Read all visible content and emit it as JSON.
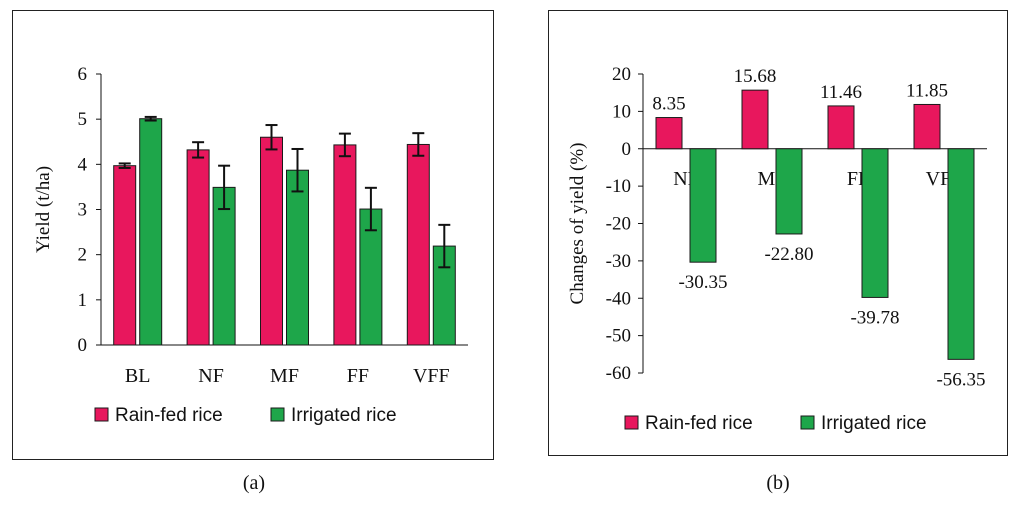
{
  "colors": {
    "rainfed": "#e8175d",
    "irrigated": "#1ea64a",
    "axis": "#111111",
    "bar_stroke": "#1a1a1a"
  },
  "captions": {
    "a": "(a)",
    "b": "(b)"
  },
  "chart_data": [
    {
      "type": "bar",
      "panel": "a",
      "categories": [
        "BL",
        "NF",
        "MF",
        "FF",
        "VFF"
      ],
      "ylabel": "Yield (t/ha)",
      "xlabel": "",
      "ylim": [
        0,
        6
      ],
      "yticks": [
        0,
        1,
        2,
        3,
        4,
        5,
        6
      ],
      "grid": false,
      "legend": "bottom",
      "series": [
        {
          "name": "Rain-fed rice",
          "color_key": "rainfed",
          "values": [
            3.97,
            4.32,
            4.6,
            4.43,
            4.44
          ],
          "errors": [
            0.05,
            0.17,
            0.27,
            0.25,
            0.25
          ]
        },
        {
          "name": "Irrigated rice",
          "color_key": "irrigated",
          "values": [
            5.01,
            3.49,
            3.87,
            3.01,
            2.19
          ],
          "errors": [
            0.04,
            0.48,
            0.47,
            0.47,
            0.47
          ]
        }
      ]
    },
    {
      "type": "bar",
      "panel": "b",
      "categories": [
        "NF",
        "MF",
        "FF",
        "VFF"
      ],
      "ylabel": "Changes of  yield (%)",
      "xlabel": "",
      "ylim": [
        -60,
        20
      ],
      "yticks": [
        20,
        10,
        0,
        -10,
        -20,
        -30,
        -40,
        -50,
        -60
      ],
      "grid": false,
      "legend": "bottom",
      "series": [
        {
          "name": "Rain-fed rice",
          "color_key": "rainfed",
          "values": [
            8.35,
            15.68,
            11.46,
            11.85
          ],
          "labels": [
            "8.35",
            "15.68",
            "11.46",
            "11.85"
          ]
        },
        {
          "name": "Irrigated rice",
          "color_key": "irrigated",
          "values": [
            -30.35,
            -22.8,
            -39.78,
            -56.35
          ],
          "labels": [
            "-30.35",
            "-22.80",
            "-39.78",
            "-56.35"
          ]
        }
      ]
    }
  ]
}
